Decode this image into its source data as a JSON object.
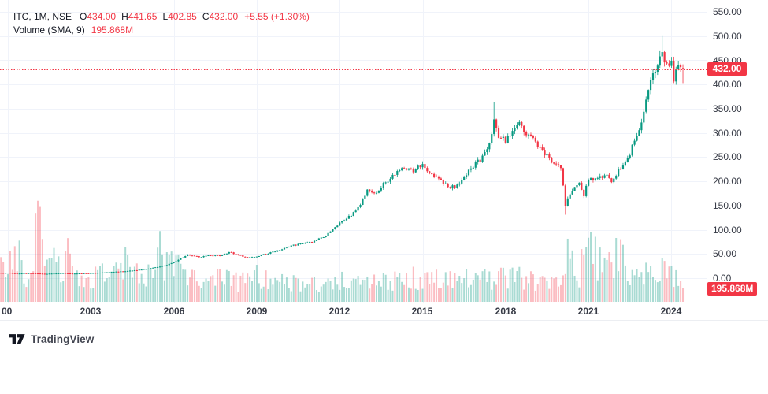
{
  "header": {
    "title": "ITC, 1M, NSE",
    "ohlc": {
      "open_label": "O",
      "open": "434.00",
      "high_label": "H",
      "high": "441.65",
      "low_label": "L",
      "low": "402.85",
      "close_label": "C",
      "close": "432.00",
      "change": "+5.55 (+1.30%)"
    },
    "volume": {
      "label": "Volume (SMA, 9)",
      "value": "195.868M"
    }
  },
  "price_axis": {
    "labels": [
      "550.00",
      "500.00",
      "450.00",
      "400.00",
      "350.00",
      "300.00",
      "250.00",
      "200.00",
      "150.00",
      "100.00",
      "50.00",
      "0.00"
    ],
    "last_price_badge": "432.00",
    "volume_badge": "195.868M"
  },
  "time_axis": {
    "labels": [
      "00",
      "2003",
      "2006",
      "2009",
      "2012",
      "2015",
      "2018",
      "2021",
      "2024"
    ]
  },
  "footer": {
    "logo_text": "TradingView"
  },
  "colors": {
    "up": "#089981",
    "down": "#f23645",
    "vol_up": "rgba(8,153,129,0.35)",
    "vol_down": "rgba(242,54,69,0.33)",
    "grid": "#f0f3fa",
    "axis_border": "#e0e3eb",
    "price_line": "#f23645",
    "badge_bg": "#f23645",
    "header_text": "#131722",
    "header_value": "#f23645",
    "axis_text": "#363a45"
  },
  "chart_data": {
    "type": "candlestick",
    "symbol": "ITC",
    "interval": "1M",
    "exchange": "NSE",
    "title": "ITC monthly candlestick chart with volume, 2000-2024",
    "x_axis": {
      "start": "2000-01",
      "end": "2024-06",
      "months": 294,
      "tick_years": [
        2000,
        2003,
        2006,
        2009,
        2012,
        2015,
        2018,
        2021,
        2024
      ]
    },
    "y_axis": {
      "min": 0,
      "max": 550,
      "step": 50,
      "side": "right"
    },
    "grid": true,
    "price_line_value": 432.0,
    "last_candle": {
      "open": 434.0,
      "high": 441.65,
      "low": 402.85,
      "close": 432.0,
      "change_abs": 5.55,
      "change_pct": 1.3
    },
    "last_volume": 195.868,
    "volume_unit": "M",
    "close_anchors": [
      [
        0,
        11
      ],
      [
        4,
        9.2
      ],
      [
        8,
        10.3
      ],
      [
        12,
        9.8
      ],
      [
        16,
        8.8
      ],
      [
        20,
        9.5
      ],
      [
        24,
        10.3
      ],
      [
        28,
        9.3
      ],
      [
        32,
        9.8
      ],
      [
        36,
        10.2
      ],
      [
        40,
        11.2
      ],
      [
        44,
        12.4
      ],
      [
        48,
        13.6
      ],
      [
        52,
        14.8
      ],
      [
        56,
        16.5
      ],
      [
        60,
        19
      ],
      [
        64,
        22
      ],
      [
        68,
        26
      ],
      [
        72,
        32
      ],
      [
        75,
        41
      ],
      [
        78,
        48
      ],
      [
        81,
        45
      ],
      [
        84,
        44
      ],
      [
        88,
        47
      ],
      [
        92,
        46
      ],
      [
        96,
        54
      ],
      [
        100,
        48
      ],
      [
        104,
        42
      ],
      [
        108,
        45
      ],
      [
        112,
        50
      ],
      [
        116,
        56
      ],
      [
        120,
        62
      ],
      [
        124,
        68
      ],
      [
        128,
        72
      ],
      [
        132,
        74
      ],
      [
        136,
        83
      ],
      [
        140,
        95
      ],
      [
        144,
        115
      ],
      [
        148,
        126
      ],
      [
        152,
        145
      ],
      [
        156,
        182
      ],
      [
        160,
        178
      ],
      [
        164,
        198
      ],
      [
        168,
        215
      ],
      [
        172,
        230
      ],
      [
        176,
        222
      ],
      [
        180,
        236
      ],
      [
        184,
        214
      ],
      [
        188,
        202
      ],
      [
        192,
        186
      ],
      [
        196,
        194
      ],
      [
        200,
        225
      ],
      [
        204,
        240
      ],
      [
        208,
        262
      ],
      [
        210,
        295
      ],
      [
        211,
        330
      ],
      [
        213,
        295
      ],
      [
        216,
        284
      ],
      [
        219,
        300
      ],
      [
        222,
        318
      ],
      [
        225,
        295
      ],
      [
        228,
        287
      ],
      [
        232,
        262
      ],
      [
        236,
        244
      ],
      [
        240,
        225
      ],
      [
        242,
        150
      ],
      [
        244,
        175
      ],
      [
        246,
        188
      ],
      [
        248,
        196
      ],
      [
        250,
        172
      ],
      [
        252,
        202
      ],
      [
        256,
        208
      ],
      [
        260,
        212
      ],
      [
        262,
        196
      ],
      [
        264,
        215
      ],
      [
        268,
        242
      ],
      [
        270,
        258
      ],
      [
        272,
        290
      ],
      [
        274,
        310
      ],
      [
        276,
        345
      ],
      [
        278,
        388
      ],
      [
        280,
        425
      ],
      [
        282,
        440
      ],
      [
        284,
        458
      ],
      [
        286,
        450
      ],
      [
        288,
        445
      ],
      [
        289,
        410
      ],
      [
        290,
        424
      ],
      [
        291,
        436
      ],
      [
        292,
        426.45
      ],
      [
        293,
        432
      ]
    ],
    "wick_spikes": {
      "211": {
        "high": 363
      },
      "242": {
        "low": 131
      },
      "284": {
        "high": 500
      }
    },
    "volume_anchors_M": [
      [
        0,
        430
      ],
      [
        3,
        720
      ],
      [
        6,
        520
      ],
      [
        9,
        320
      ],
      [
        12,
        880
      ],
      [
        14,
        1060
      ],
      [
        16,
        640
      ],
      [
        18,
        820
      ],
      [
        21,
        420
      ],
      [
        24,
        520
      ],
      [
        27,
        680
      ],
      [
        30,
        360
      ],
      [
        33,
        260
      ],
      [
        36,
        310
      ],
      [
        40,
        430
      ],
      [
        44,
        360
      ],
      [
        48,
        520
      ],
      [
        52,
        600
      ],
      [
        56,
        430
      ],
      [
        60,
        390
      ],
      [
        64,
        560
      ],
      [
        66,
        800
      ],
      [
        68,
        540
      ],
      [
        72,
        700
      ],
      [
        74,
        730
      ],
      [
        76,
        420
      ],
      [
        80,
        310
      ],
      [
        84,
        330
      ],
      [
        88,
        290
      ],
      [
        92,
        350
      ],
      [
        96,
        310
      ],
      [
        100,
        270
      ],
      [
        104,
        310
      ],
      [
        108,
        350
      ],
      [
        112,
        300
      ],
      [
        116,
        270
      ],
      [
        120,
        290
      ],
      [
        126,
        250
      ],
      [
        132,
        270
      ],
      [
        138,
        310
      ],
      [
        144,
        290
      ],
      [
        150,
        330
      ],
      [
        156,
        310
      ],
      [
        162,
        290
      ],
      [
        168,
        310
      ],
      [
        174,
        330
      ],
      [
        180,
        350
      ],
      [
        186,
        310
      ],
      [
        192,
        290
      ],
      [
        198,
        330
      ],
      [
        204,
        310
      ],
      [
        210,
        350
      ],
      [
        216,
        330
      ],
      [
        222,
        370
      ],
      [
        228,
        310
      ],
      [
        234,
        290
      ],
      [
        240,
        340
      ],
      [
        242,
        640
      ],
      [
        244,
        560
      ],
      [
        246,
        500
      ],
      [
        248,
        420
      ],
      [
        250,
        580
      ],
      [
        252,
        660
      ],
      [
        254,
        880
      ],
      [
        256,
        580
      ],
      [
        258,
        500
      ],
      [
        260,
        440
      ],
      [
        262,
        520
      ],
      [
        264,
        840
      ],
      [
        266,
        620
      ],
      [
        268,
        580
      ],
      [
        270,
        480
      ],
      [
        272,
        440
      ],
      [
        274,
        400
      ],
      [
        276,
        430
      ],
      [
        278,
        370
      ],
      [
        280,
        410
      ],
      [
        282,
        450
      ],
      [
        284,
        490
      ],
      [
        286,
        390
      ],
      [
        288,
        450
      ],
      [
        290,
        310
      ],
      [
        292,
        260
      ],
      [
        293,
        195.868
      ]
    ]
  }
}
